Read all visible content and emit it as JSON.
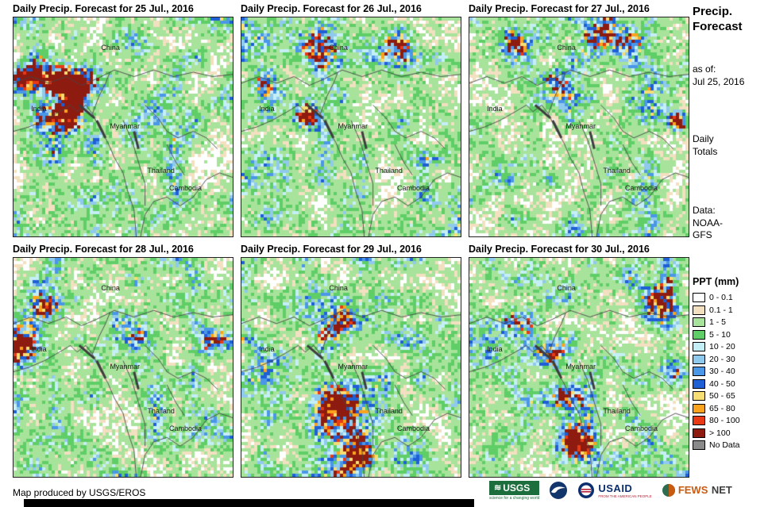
{
  "panels": [
    {
      "title": "Daily Precip. Forecast for 25 Jul., 2016"
    },
    {
      "title": "Daily Precip. Forecast for 26 Jul., 2016"
    },
    {
      "title": "Daily Precip. Forecast for 27 Jul., 2016"
    },
    {
      "title": "Daily Precip. Forecast for 28 Jul., 2016"
    },
    {
      "title": "Daily Precip. Forecast for 29 Jul., 2016"
    },
    {
      "title": "Daily Precip. Forecast for 30 Jul., 2016"
    }
  ],
  "map_labels": {
    "china": "China",
    "india": "India",
    "myanmar": "Myanmar",
    "thailand": "Thailand",
    "cambodia": "Cambodia"
  },
  "sidebar": {
    "title_line1": "Precip.",
    "title_line2": "Forecast",
    "as_of_label": "as of:",
    "as_of_date": "Jul 25, 2016",
    "totals_line1": "Daily",
    "totals_line2": "Totals",
    "data_label": "Data:",
    "data_line1": "NOAA-",
    "data_line2": "GFS",
    "legend_title": "PPT (mm)",
    "legend": [
      {
        "label": "0 - 0.1",
        "color": "#FFFFFF"
      },
      {
        "label": "0.1 - 1",
        "color": "#F2E0C0"
      },
      {
        "label": "1 - 5",
        "color": "#A8E39B"
      },
      {
        "label": "5 - 10",
        "color": "#5FCE66"
      },
      {
        "label": "10 - 20",
        "color": "#C5EFF7"
      },
      {
        "label": "20 - 30",
        "color": "#8FCAEE"
      },
      {
        "label": "30 - 40",
        "color": "#4A97E8"
      },
      {
        "label": "40 - 50",
        "color": "#1F5FD6"
      },
      {
        "label": "50 - 65",
        "color": "#F6DE75"
      },
      {
        "label": "65 - 80",
        "color": "#FBA31C"
      },
      {
        "label": "80 - 100",
        "color": "#E83A15"
      },
      {
        "label": "> 100",
        "color": "#8E1B10"
      },
      {
        "label": "No Data",
        "color": "#8A8A8A"
      }
    ]
  },
  "footer": {
    "credit": "Map produced by USGS/EROS",
    "logos": {
      "usgs_text": "USGS",
      "usgs_tagline": "science for a changing world",
      "usaid_text": "USAID",
      "usaid_tagline": "FROM THE AMERICAN PEOPLE",
      "fews_text1": "FEWS",
      "fews_text2": "NET"
    }
  }
}
